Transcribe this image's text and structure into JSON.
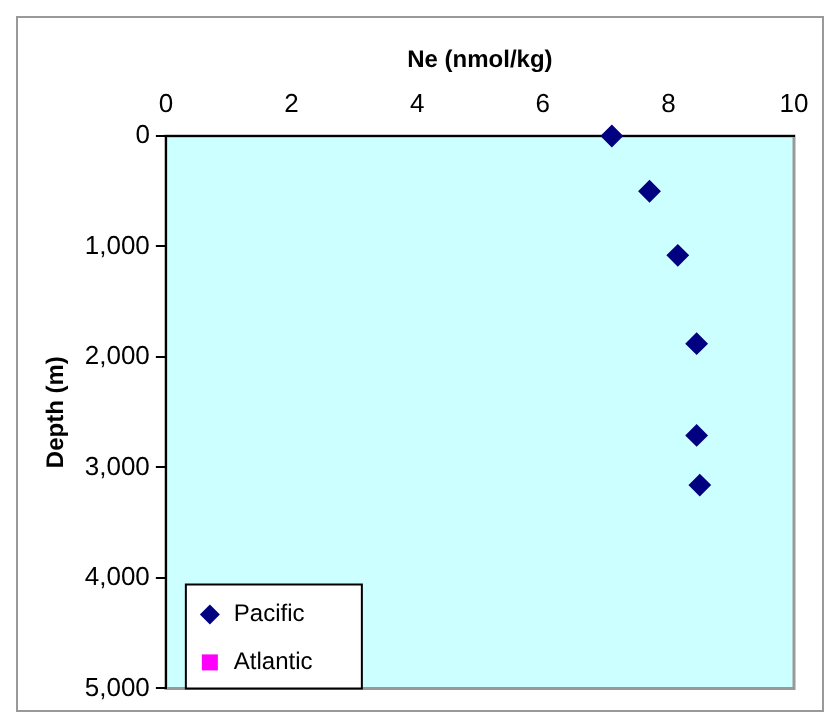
{
  "chart_data": {
    "type": "scatter",
    "xlabel": "Ne (nmol/kg)",
    "ylabel": "Depth (m)",
    "xlim": [
      0,
      10
    ],
    "xticks": [
      0,
      2,
      4,
      6,
      8,
      10
    ],
    "ylim": [
      5000,
      0
    ],
    "yticks": [
      0,
      {
        "value": 1000,
        "label": "1,000"
      },
      {
        "value": 2000,
        "label": "2,000"
      },
      {
        "value": 3000,
        "label": "3,000"
      },
      {
        "value": 4000,
        "label": "4,000"
      },
      {
        "value": 5000,
        "label": "5,000"
      }
    ],
    "series": [
      {
        "name": "Pacific",
        "color": "#000080",
        "marker": "diamond",
        "x": [
          7.1,
          7.7,
          8.15,
          8.45,
          8.45,
          8.5
        ],
        "values": [
          0,
          500,
          1080,
          1880,
          2710,
          3160
        ]
      },
      {
        "name": "Atlantic",
        "color": "#ff00ff",
        "marker": "square"
      }
    ],
    "grid": false,
    "legend": "bottom left"
  }
}
